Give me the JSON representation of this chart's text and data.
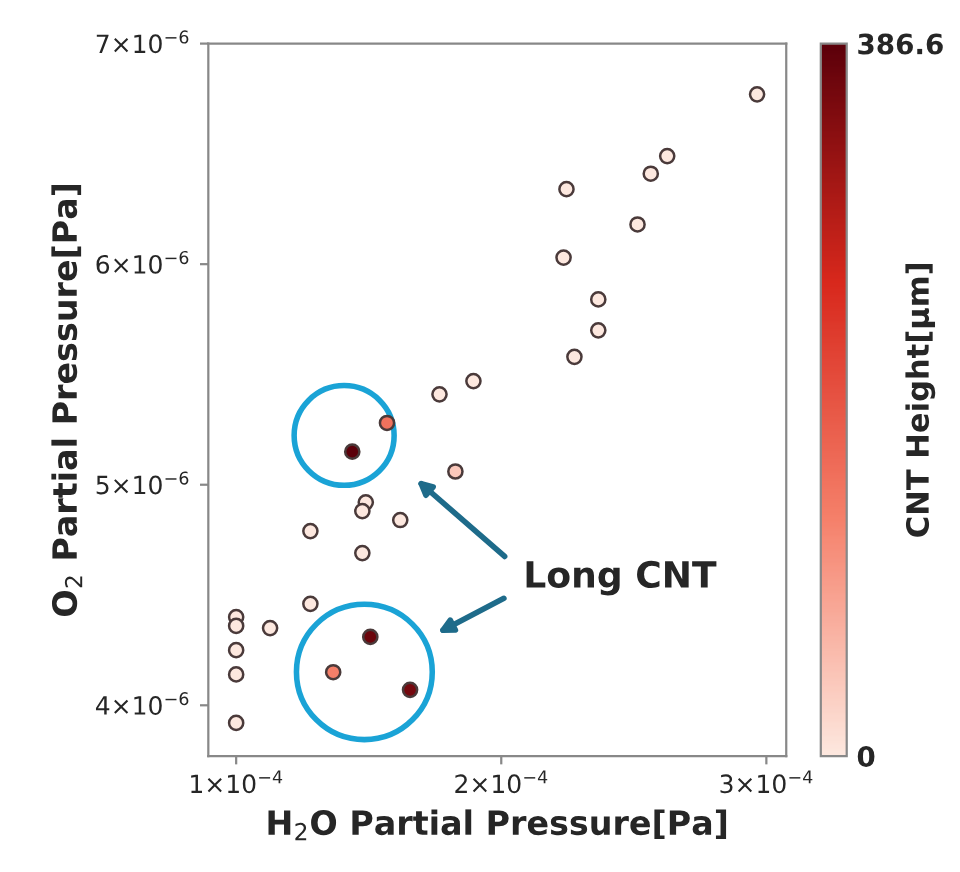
{
  "chart_data": {
    "type": "scatter",
    "xlabel": "H$_{2}$O Partial Pressure[Pa]",
    "ylabel": "O$_{2}$ Partial Pressure[Pa]",
    "clabel": "CNT Height[μm]",
    "x": [
      0.0002965,
      0.0002626,
      0.0002564,
      0.0002246,
      0.0002514,
      0.0002235,
      0.0002366,
      0.0002366,
      0.0002276,
      0.0001895,
      0.0001767,
      0.0001569,
      0.0001438,
      0.0001827,
      0.0001489,
      0.0001476,
      0.0001619,
      0.000128,
      0.0001476,
      0.000128,
      0.0001,
      0.0001,
      0.0001128,
      0.0001,
      0.0001506,
      0.0001366,
      0.0001656,
      0.0001,
      0.0001
    ],
    "values": [
      6.77e-06,
      6.49e-06,
      6.41e-06,
      6.34e-06,
      6.18e-06,
      6.03e-06,
      5.84e-06,
      5.7e-06,
      5.58e-06,
      5.47e-06,
      5.41e-06,
      5.28e-06,
      5.15e-06,
      5.06e-06,
      4.92e-06,
      4.88e-06,
      4.84e-06,
      4.79e-06,
      4.69e-06,
      4.46e-06,
      4.4e-06,
      4.36e-06,
      4.35e-06,
      4.25e-06,
      4.31e-06,
      4.15e-06,
      4.07e-06,
      4.14e-06,
      3.92e-06
    ],
    "cvalues": [
      0,
      0,
      0,
      0,
      0,
      0,
      0,
      0,
      0,
      0,
      0,
      150,
      386.6,
      40,
      0,
      0,
      0,
      0,
      0,
      0,
      0,
      0,
      0,
      0,
      370,
      130,
      360,
      0,
      0
    ],
    "xlim": [
      8.95e-05,
      0.0003075
    ],
    "ylim": [
      3.77e-06,
      7e-06
    ],
    "xticks": [
      {
        "value": 0.0001,
        "label": "1×10$^{−4}$"
      },
      {
        "value": 0.0002,
        "label": "2×10$^{−4}$"
      },
      {
        "value": 0.0003,
        "label": "3×10$^{−4}$"
      }
    ],
    "yticks": [
      {
        "value": 4e-06,
        "label": "4×10$^{−6}$"
      },
      {
        "value": 5e-06,
        "label": "5×10$^{−6}$"
      },
      {
        "value": 6e-06,
        "label": "6×10$^{−6}$"
      },
      {
        "value": 7e-06,
        "label": "7×10$^{−6}$"
      }
    ],
    "clim": [
      0,
      386.6
    ],
    "cticks": [
      0,
      386.6
    ],
    "marker": "circle",
    "grid": false,
    "annotations": [
      "Long CNT"
    ]
  }
}
